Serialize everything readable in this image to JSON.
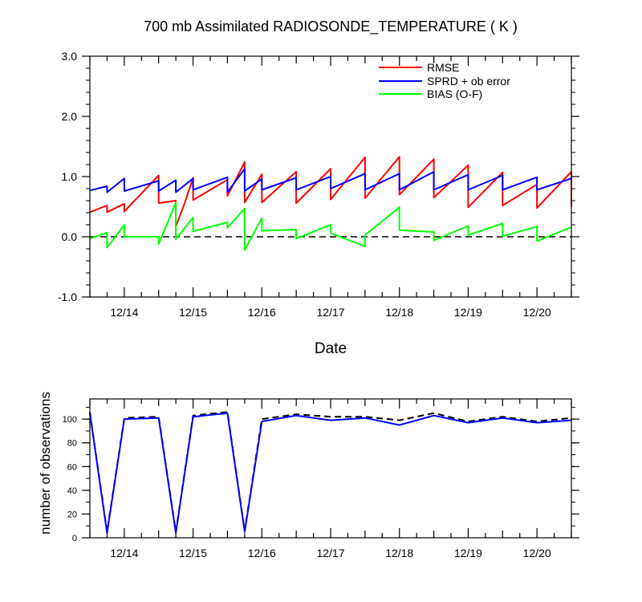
{
  "colors": {
    "rmse": "#ff0000",
    "sprd": "#0000ff",
    "bias": "#00ff00",
    "used": "#0000ff",
    "possible": "#000000"
  },
  "chart_data": [
    {
      "type": "line",
      "title": "700 mb Assimilated RADIOSONDE_TEMPERATURE ( K )",
      "xlabel": "Date",
      "ylabel": "",
      "x_range": [
        "12/13 12Z",
        "12/20 12Z"
      ],
      "x_ticks": [
        "12/14",
        "12/15",
        "12/16",
        "12/17",
        "12/18",
        "12/19",
        "12/20"
      ],
      "ylim": [
        -1.0,
        3.0
      ],
      "y_ticks": [
        "-1.0",
        "0.0",
        "1.0",
        "2.0",
        "3.0"
      ],
      "zero_line": "dashed",
      "legend_position": "top-right",
      "series": [
        {
          "name": "RMSE",
          "color": "#ff0000",
          "x": [
            "12/13 12Z",
            "12/13 18Z",
            "12/13 18Z",
            "12/14 00Z",
            "12/14 00Z",
            "12/14 12Z",
            "12/14 12Z",
            "12/14 18Z",
            "12/14 18Z",
            "12/14 21Z",
            "12/15 00Z",
            "12/15 00Z",
            "12/15 12Z",
            "12/15 12Z",
            "12/15 18Z",
            "12/15 18Z",
            "12/16 00Z",
            "12/16 00Z",
            "12/16 12Z",
            "12/16 12Z",
            "12/17 00Z",
            "12/17 00Z",
            "12/17 12Z",
            "12/17 12Z",
            "12/18 00Z",
            "12/18 00Z",
            "12/18 12Z",
            "12/18 12Z",
            "12/19 00Z",
            "12/19 00Z",
            "12/19 12Z",
            "12/19 12Z",
            "12/20 00Z",
            "12/20 00Z",
            "12/20 12Z",
            "12/20 12Z"
          ],
          "y": [
            0.41,
            0.52,
            0.41,
            0.55,
            0.42,
            1.02,
            0.56,
            0.6,
            0.17,
            0.55,
            0.98,
            0.61,
            0.95,
            0.68,
            1.24,
            0.57,
            1.04,
            0.57,
            1.08,
            0.56,
            1.13,
            0.62,
            1.32,
            0.64,
            1.33,
            0.7,
            1.29,
            0.65,
            1.19,
            0.49,
            1.07,
            0.52,
            0.87,
            0.48,
            1.08,
            0.5
          ]
        },
        {
          "name": "SPRD + ob error",
          "color": "#0000ff",
          "x": [
            "12/13 12Z",
            "12/13 18Z",
            "12/13 18Z",
            "12/14 00Z",
            "12/14 00Z",
            "12/14 12Z",
            "12/14 12Z",
            "12/14 18Z",
            "12/14 18Z",
            "12/15 00Z",
            "12/15 00Z",
            "12/15 12Z",
            "12/15 12Z",
            "12/15 18Z",
            "12/15 18Z",
            "12/16 00Z",
            "12/16 00Z",
            "12/16 12Z",
            "12/16 12Z",
            "12/17 00Z",
            "12/17 00Z",
            "12/17 12Z",
            "12/17 12Z",
            "12/18 00Z",
            "12/18 00Z",
            "12/18 12Z",
            "12/18 12Z",
            "12/19 00Z",
            "12/19 00Z",
            "12/19 12Z",
            "12/19 12Z",
            "12/20 00Z",
            "12/20 00Z",
            "12/20 12Z"
          ],
          "y": [
            0.77,
            0.84,
            0.74,
            0.97,
            0.76,
            0.93,
            0.76,
            0.94,
            0.74,
            0.97,
            0.78,
            0.99,
            0.74,
            1.13,
            0.76,
            0.96,
            0.78,
            0.98,
            0.78,
            1.0,
            0.8,
            1.05,
            0.78,
            1.05,
            0.78,
            1.08,
            0.78,
            1.03,
            0.78,
            1.02,
            0.78,
            0.99,
            0.78,
            0.97
          ]
        },
        {
          "name": "BIAS (O-F)",
          "color": "#00ff00",
          "x": [
            "12/13 12Z",
            "12/13 18Z",
            "12/13 18Z",
            "12/14 00Z",
            "12/14 00Z",
            "12/14 12Z",
            "12/14 12Z",
            "12/14 18Z",
            "12/14 18Z",
            "12/15 00Z",
            "12/15 00Z",
            "12/15 12Z",
            "12/15 12Z",
            "12/15 18Z",
            "12/15 18Z",
            "12/16 00Z",
            "12/16 00Z",
            "12/16 12Z",
            "12/16 12Z",
            "12/17 00Z",
            "12/17 00Z",
            "12/17 12Z",
            "12/17 12Z",
            "12/18 00Z",
            "12/18 00Z",
            "12/18 12Z",
            "12/18 12Z",
            "12/19 00Z",
            "12/19 00Z",
            "12/19 12Z",
            "12/19 12Z",
            "12/20 00Z",
            "12/20 00Z",
            "12/20 12Z"
          ],
          "y": [
            -0.03,
            0.07,
            -0.18,
            0.2,
            0.0,
            0.0,
            -0.12,
            0.57,
            -0.04,
            0.32,
            0.09,
            0.24,
            0.15,
            0.47,
            -0.22,
            0.31,
            0.1,
            0.12,
            -0.03,
            0.2,
            0.06,
            -0.16,
            0.03,
            0.49,
            0.11,
            0.08,
            -0.06,
            0.18,
            0.03,
            0.22,
            0.01,
            0.17,
            -0.07,
            0.16
          ]
        }
      ]
    },
    {
      "type": "line",
      "title": "",
      "xlabel": "",
      "ylabel": "number of observations",
      "x_range": [
        "12/13 12Z",
        "12/20 12Z"
      ],
      "x_ticks": [
        "12/14",
        "12/15",
        "12/16",
        "12/17",
        "12/18",
        "12/19",
        "12/20"
      ],
      "ylim": [
        0,
        117
      ],
      "y_ticks": [
        "0",
        "20",
        "40",
        "60",
        "80",
        "100"
      ],
      "series": [
        {
          "color": "#000000",
          "style": "dashed",
          "x": [
            "12/13 12Z",
            "12/13 18Z",
            "12/14 00Z",
            "12/14 12Z",
            "12/14 18Z",
            "12/15 00Z",
            "12/15 12Z",
            "12/15 18Z",
            "12/16 00Z",
            "12/16 12Z",
            "12/17 00Z",
            "12/17 12Z",
            "12/18 00Z",
            "12/18 12Z",
            "12/19 00Z",
            "12/19 12Z",
            "12/20 00Z",
            "12/20 12Z"
          ],
          "y": [
            106,
            5,
            101,
            102,
            5,
            103,
            106,
            6,
            100,
            104,
            102,
            102,
            99,
            105,
            98,
            102,
            98,
            101
          ]
        },
        {
          "color": "#0000ff",
          "style": "solid",
          "x": [
            "12/13 12Z",
            "12/13 18Z",
            "12/14 00Z",
            "12/14 12Z",
            "12/14 18Z",
            "12/15 00Z",
            "12/15 12Z",
            "12/15 18Z",
            "12/16 00Z",
            "12/16 12Z",
            "12/17 00Z",
            "12/17 12Z",
            "12/18 00Z",
            "12/18 12Z",
            "12/19 00Z",
            "12/19 12Z",
            "12/20 00Z",
            "12/20 12Z"
          ],
          "y": [
            105,
            4,
            100,
            101,
            4,
            102,
            105,
            5,
            98,
            103,
            99,
            101,
            95,
            103,
            97,
            101,
            97,
            99
          ]
        }
      ]
    }
  ]
}
